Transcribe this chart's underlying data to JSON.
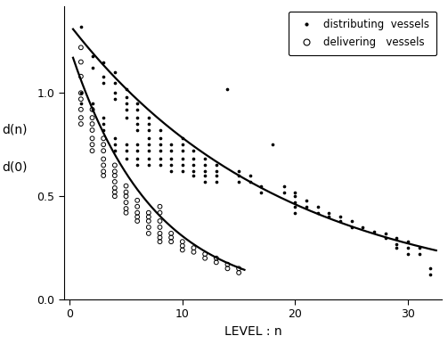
{
  "title": "",
  "xlabel": "LEVEL : n",
  "ylabel_line1": "d(n)",
  "ylabel_line2": "d(0)",
  "xlim": [
    -0.5,
    33
  ],
  "ylim": [
    0,
    1.42
  ],
  "yticks": [
    0,
    0.5,
    1.0
  ],
  "xticks": [
    0,
    10,
    20,
    30
  ],
  "bg_color": "#ffffff",
  "dist_curve": {
    "a": 1.33,
    "b": -0.053,
    "x_start": 0.3,
    "x_end": 32.5
  },
  "deliv_curve": {
    "a": 1.22,
    "b": -0.138,
    "x_start": 0.3,
    "x_end": 15.5
  },
  "distributing_vessels": [
    [
      1,
      1.32
    ],
    [
      2,
      1.18
    ],
    [
      2,
      1.12
    ],
    [
      3,
      1.15
    ],
    [
      3,
      1.08
    ],
    [
      3,
      1.05
    ],
    [
      4,
      1.1
    ],
    [
      4,
      1.05
    ],
    [
      4,
      1.0
    ],
    [
      4,
      0.97
    ],
    [
      5,
      1.02
    ],
    [
      5,
      0.98
    ],
    [
      5,
      0.95
    ],
    [
      5,
      0.92
    ],
    [
      5,
      0.88
    ],
    [
      6,
      0.95
    ],
    [
      6,
      0.92
    ],
    [
      6,
      0.88
    ],
    [
      6,
      0.85
    ],
    [
      6,
      0.82
    ],
    [
      7,
      0.88
    ],
    [
      7,
      0.85
    ],
    [
      7,
      0.82
    ],
    [
      7,
      0.78
    ],
    [
      3,
      0.88
    ],
    [
      3,
      0.85
    ],
    [
      3,
      0.82
    ],
    [
      2,
      0.95
    ],
    [
      2,
      0.92
    ],
    [
      1,
      1.0
    ],
    [
      1,
      0.95
    ],
    [
      4,
      0.78
    ],
    [
      4,
      0.75
    ],
    [
      4,
      0.72
    ],
    [
      5,
      0.75
    ],
    [
      5,
      0.72
    ],
    [
      5,
      0.68
    ],
    [
      6,
      0.75
    ],
    [
      6,
      0.72
    ],
    [
      6,
      0.68
    ],
    [
      6,
      0.65
    ],
    [
      7,
      0.75
    ],
    [
      7,
      0.72
    ],
    [
      7,
      0.68
    ],
    [
      7,
      0.65
    ],
    [
      8,
      0.82
    ],
    [
      8,
      0.78
    ],
    [
      8,
      0.75
    ],
    [
      8,
      0.72
    ],
    [
      8,
      0.68
    ],
    [
      8,
      0.65
    ],
    [
      9,
      0.75
    ],
    [
      9,
      0.72
    ],
    [
      9,
      0.68
    ],
    [
      9,
      0.65
    ],
    [
      9,
      0.62
    ],
    [
      10,
      0.78
    ],
    [
      10,
      0.75
    ],
    [
      10,
      0.72
    ],
    [
      10,
      0.68
    ],
    [
      10,
      0.65
    ],
    [
      10,
      0.62
    ],
    [
      11,
      0.72
    ],
    [
      11,
      0.68
    ],
    [
      11,
      0.65
    ],
    [
      11,
      0.62
    ],
    [
      11,
      0.6
    ],
    [
      12,
      0.68
    ],
    [
      12,
      0.65
    ],
    [
      12,
      0.62
    ],
    [
      12,
      0.6
    ],
    [
      12,
      0.57
    ],
    [
      13,
      0.65
    ],
    [
      13,
      0.62
    ],
    [
      13,
      0.6
    ],
    [
      13,
      0.57
    ],
    [
      14,
      1.02
    ],
    [
      15,
      0.62
    ],
    [
      15,
      0.6
    ],
    [
      15,
      0.57
    ],
    [
      16,
      0.6
    ],
    [
      16,
      0.57
    ],
    [
      17,
      0.55
    ],
    [
      17,
      0.52
    ],
    [
      18,
      0.75
    ],
    [
      19,
      0.55
    ],
    [
      19,
      0.52
    ],
    [
      20,
      0.52
    ],
    [
      20,
      0.5
    ],
    [
      20,
      0.47
    ],
    [
      20,
      0.45
    ],
    [
      20,
      0.42
    ],
    [
      21,
      0.48
    ],
    [
      21,
      0.45
    ],
    [
      22,
      0.45
    ],
    [
      22,
      0.42
    ],
    [
      23,
      0.42
    ],
    [
      23,
      0.4
    ],
    [
      24,
      0.4
    ],
    [
      24,
      0.38
    ],
    [
      25,
      0.38
    ],
    [
      25,
      0.35
    ],
    [
      26,
      0.35
    ],
    [
      27,
      0.33
    ],
    [
      28,
      0.32
    ],
    [
      28,
      0.3
    ],
    [
      29,
      0.3
    ],
    [
      29,
      0.27
    ],
    [
      29,
      0.25
    ],
    [
      30,
      0.28
    ],
    [
      30,
      0.25
    ],
    [
      30,
      0.22
    ],
    [
      31,
      0.25
    ],
    [
      31,
      0.22
    ],
    [
      32,
      0.15
    ],
    [
      32,
      0.12
    ]
  ],
  "delivering_vessels": [
    [
      1,
      1.22
    ],
    [
      1,
      1.15
    ],
    [
      1,
      1.08
    ],
    [
      1,
      1.0
    ],
    [
      1,
      0.97
    ],
    [
      1,
      0.92
    ],
    [
      1,
      0.88
    ],
    [
      1,
      0.85
    ],
    [
      2,
      0.92
    ],
    [
      2,
      0.88
    ],
    [
      2,
      0.85
    ],
    [
      2,
      0.82
    ],
    [
      2,
      0.78
    ],
    [
      2,
      0.75
    ],
    [
      2,
      0.72
    ],
    [
      3,
      0.78
    ],
    [
      3,
      0.75
    ],
    [
      3,
      0.72
    ],
    [
      3,
      0.68
    ],
    [
      3,
      0.65
    ],
    [
      3,
      0.62
    ],
    [
      3,
      0.6
    ],
    [
      4,
      0.65
    ],
    [
      4,
      0.62
    ],
    [
      4,
      0.6
    ],
    [
      4,
      0.57
    ],
    [
      4,
      0.54
    ],
    [
      4,
      0.52
    ],
    [
      4,
      0.5
    ],
    [
      5,
      0.55
    ],
    [
      5,
      0.52
    ],
    [
      5,
      0.5
    ],
    [
      5,
      0.47
    ],
    [
      5,
      0.44
    ],
    [
      5,
      0.42
    ],
    [
      6,
      0.48
    ],
    [
      6,
      0.45
    ],
    [
      6,
      0.42
    ],
    [
      6,
      0.4
    ],
    [
      6,
      0.38
    ],
    [
      7,
      0.42
    ],
    [
      7,
      0.4
    ],
    [
      7,
      0.38
    ],
    [
      7,
      0.35
    ],
    [
      7,
      0.32
    ],
    [
      8,
      0.38
    ],
    [
      8,
      0.35
    ],
    [
      8,
      0.32
    ],
    [
      8,
      0.3
    ],
    [
      8,
      0.28
    ],
    [
      8,
      0.42
    ],
    [
      8,
      0.45
    ],
    [
      9,
      0.32
    ],
    [
      9,
      0.3
    ],
    [
      9,
      0.28
    ],
    [
      10,
      0.28
    ],
    [
      10,
      0.26
    ],
    [
      10,
      0.24
    ],
    [
      11,
      0.25
    ],
    [
      11,
      0.23
    ],
    [
      12,
      0.22
    ],
    [
      12,
      0.2
    ],
    [
      13,
      0.2
    ],
    [
      13,
      0.18
    ],
    [
      14,
      0.17
    ],
    [
      14,
      0.15
    ],
    [
      15,
      0.15
    ],
    [
      15,
      0.13
    ]
  ]
}
